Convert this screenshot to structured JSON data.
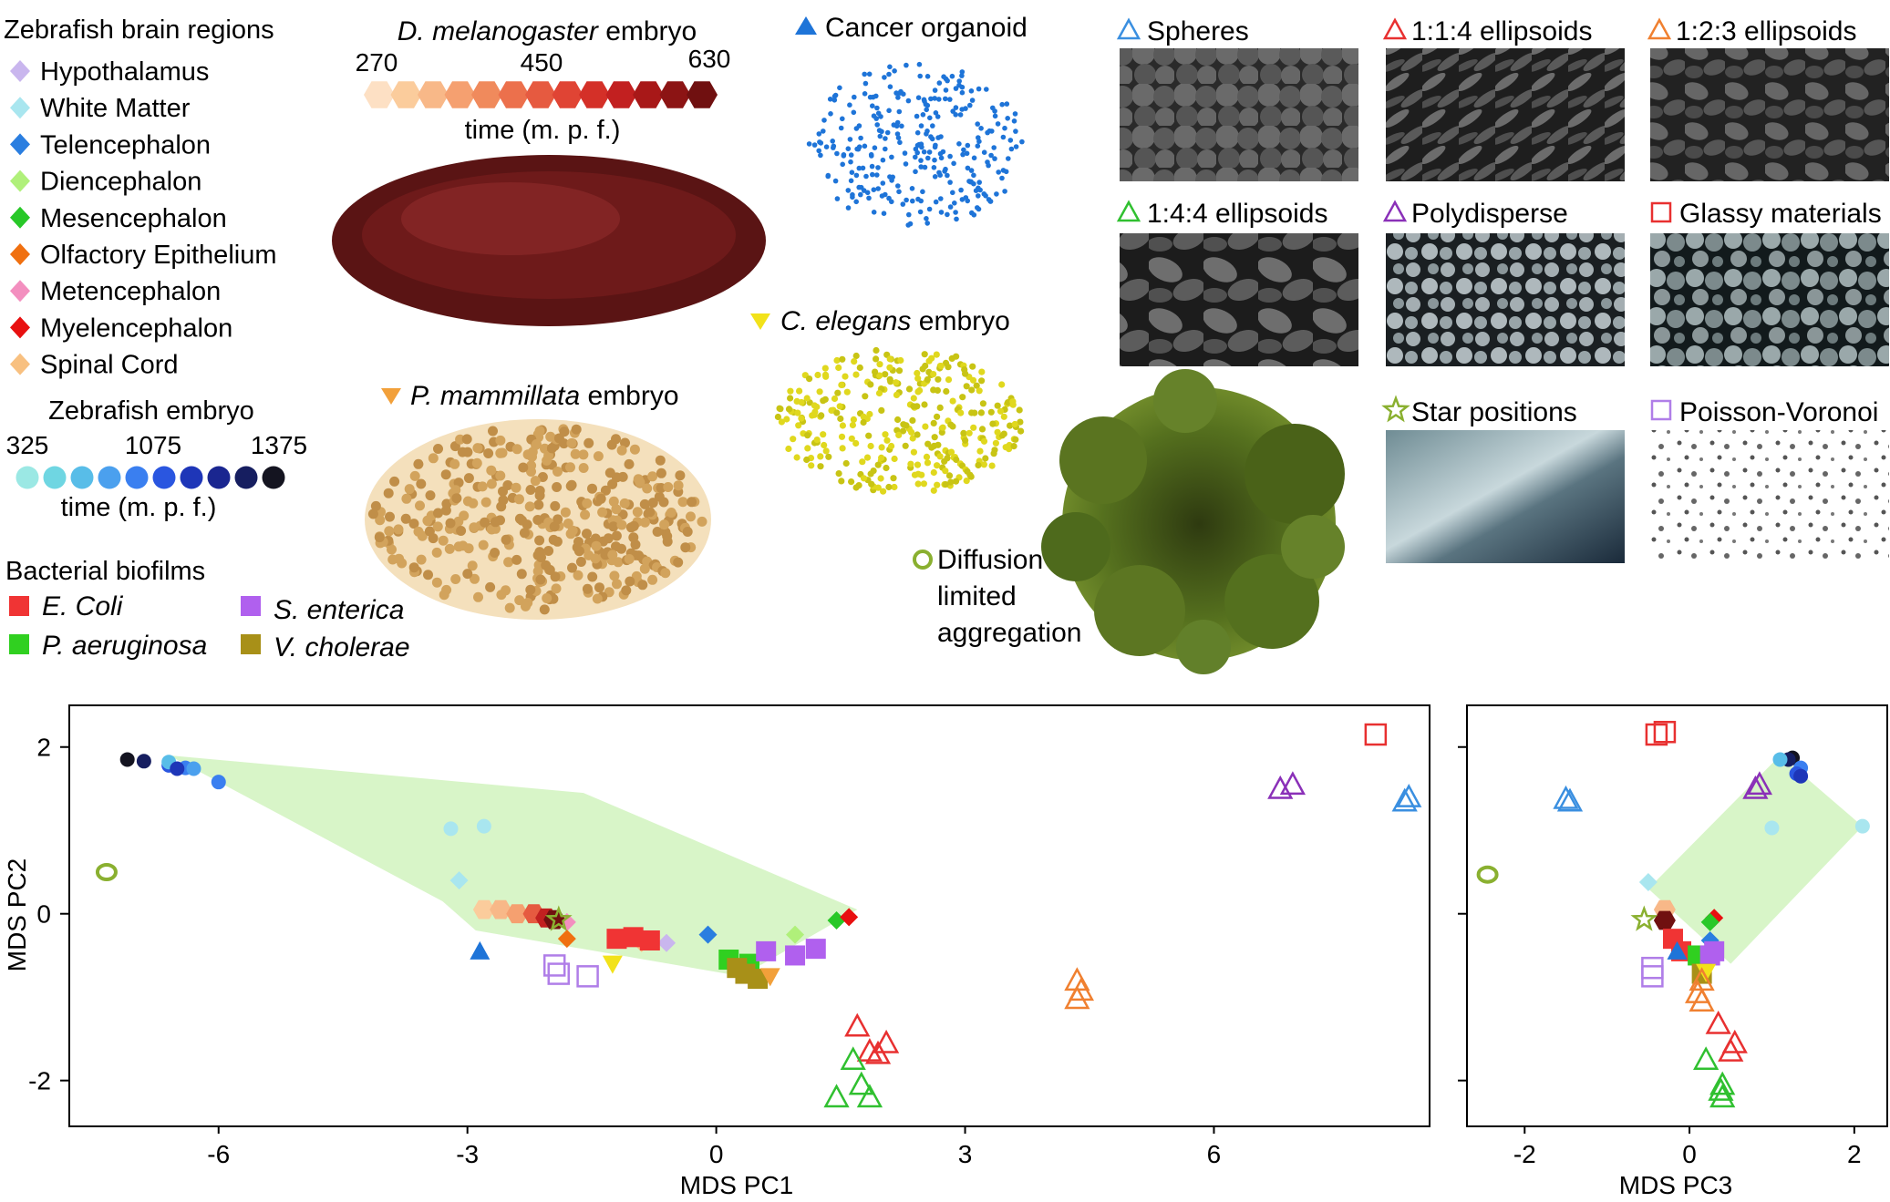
{
  "legend": {
    "zebrafish_regions_title": "Zebrafish brain regions",
    "regions": [
      {
        "label": "Hypothalamus",
        "color": "#c9b6ee"
      },
      {
        "label": "White Matter",
        "color": "#a9e6ef"
      },
      {
        "label": "Telencephalon",
        "color": "#2a7ee0"
      },
      {
        "label": "Diencephalon",
        "color": "#b0f07a"
      },
      {
        "label": "Mesencephalon",
        "color": "#28c828"
      },
      {
        "label": "Olfactory Epithelium",
        "color": "#f07010"
      },
      {
        "label": "Metencephalon",
        "color": "#f38fbf"
      },
      {
        "label": "Myelencephalon",
        "color": "#e81010"
      },
      {
        "label": "Spinal Cord",
        "color": "#f8c080"
      }
    ],
    "zebrafish_embryo": {
      "title": "Zebrafish embryo",
      "ticks": [
        "325",
        "1075",
        "1375"
      ],
      "axis_label": "time (m. p. f.)",
      "colors": [
        "#9be8e4",
        "#6fd6e2",
        "#58bde8",
        "#4ba0ee",
        "#3a7ff0",
        "#2a56e0",
        "#1e36b8",
        "#1a2690",
        "#161e60",
        "#141420"
      ]
    },
    "biofilms": {
      "title": "Bacterial biofilms",
      "items": [
        {
          "label": "E. Coli",
          "color": "#f03434"
        },
        {
          "label": "S. enterica",
          "color": "#b060ee"
        },
        {
          "label": "P. aeruginosa",
          "color": "#30d020"
        },
        {
          "label": "V. cholerae",
          "color": "#a89018"
        }
      ]
    },
    "drosophila": {
      "title_italic": "D. melanogaster",
      "title_rest": " embryo",
      "ticks": [
        "270",
        "450",
        "630"
      ],
      "axis_label": "time (m. p. f.)",
      "colors": [
        "#fde0c4",
        "#fbcc9c",
        "#f8b888",
        "#f5a070",
        "#f08a5c",
        "#ec704c",
        "#e65a40",
        "#e04434",
        "#d43028",
        "#c22020",
        "#a81818",
        "#8c1414",
        "#701010"
      ]
    },
    "pmammillata": {
      "title_italic": "P. mammillata",
      "title_rest": " embryo",
      "color": "#f2a03a"
    },
    "cancer_organoid": {
      "label": "Cancer organoid",
      "color": "#1e74d8"
    },
    "celegans": {
      "title_italic": "C. elegans",
      "title_rest": " embryo",
      "color": "#f2e21a"
    },
    "dla": {
      "lines": [
        "Diffusion",
        "limited",
        "aggregation"
      ],
      "color": "#8ab030"
    },
    "panels": [
      {
        "label": "Spheres",
        "marker": "triangle",
        "color": "#3a8fe0"
      },
      {
        "label": "1:1:4 ellipsoids",
        "marker": "triangle",
        "color": "#e83030"
      },
      {
        "label": "1:2:3 ellipsoids",
        "marker": "triangle",
        "color": "#f08030"
      },
      {
        "label": "1:4:4 ellipsoids",
        "marker": "triangle",
        "color": "#30c030"
      },
      {
        "label": "Polydisperse",
        "marker": "triangle",
        "color": "#8a30b8"
      },
      {
        "label": "Glassy materials",
        "marker": "square",
        "color": "#e83030"
      },
      {
        "label": "Star positions",
        "marker": "star",
        "color": "#8ab030"
      },
      {
        "label": "Poisson-Voronoi",
        "marker": "square",
        "color": "#b07ee8"
      }
    ]
  },
  "chart_data": [
    {
      "type": "scatter",
      "xlabel": "MDS PC1",
      "ylabel": "MDS PC2",
      "xlim": [
        -7.8,
        8.6
      ],
      "ylim": [
        -2.55,
        2.5
      ],
      "xticks": [
        "-6",
        "-3",
        "0",
        "3",
        "6"
      ],
      "xtick_values": [
        -6,
        -3,
        0,
        3,
        6
      ],
      "yticks": [
        "2",
        "0",
        "-2"
      ],
      "ytick_values": [
        2,
        0,
        -2
      ],
      "hull": [
        [
          -6.6,
          1.9
        ],
        [
          -1.6,
          1.45
        ],
        [
          1.7,
          0.05
        ],
        [
          0.3,
          -0.75
        ],
        [
          -2.9,
          -0.2
        ],
        [
          -3.3,
          0.15
        ]
      ],
      "hull_color": "#d8f5c8",
      "series": [
        {
          "name": "Zebrafish embryo",
          "marker": "circle",
          "points": [
            [
              -7.1,
              1.85,
              "#141420"
            ],
            [
              -6.9,
              1.83,
              "#161e60"
            ],
            [
              -6.6,
              1.78,
              "#2a56e0"
            ],
            [
              -6.4,
              1.75,
              "#3a7ff0"
            ],
            [
              -6.6,
              1.82,
              "#58bde8"
            ],
            [
              -6.0,
              1.58,
              "#3a7ff0"
            ],
            [
              -6.3,
              1.74,
              "#4ba0ee"
            ],
            [
              -6.5,
              1.74,
              "#1e36b8"
            ],
            [
              -3.2,
              1.02,
              "#a9e6ef"
            ],
            [
              -2.8,
              1.05,
              "#a9e6ef"
            ]
          ]
        },
        {
          "name": "Zebrafish brain regions",
          "marker": "diamond",
          "points": [
            [
              -3.1,
              0.4,
              "#a9e6ef"
            ],
            [
              -2.1,
              -0.05,
              "#c9b6ee"
            ],
            [
              -1.8,
              -0.1,
              "#f38fbf"
            ],
            [
              -0.6,
              -0.35,
              "#c9b6ee"
            ],
            [
              -0.1,
              -0.25,
              "#2a7ee0"
            ],
            [
              0.95,
              -0.25,
              "#b0f07a"
            ],
            [
              1.45,
              -0.08,
              "#28c828"
            ],
            [
              1.6,
              -0.04,
              "#e81010"
            ],
            [
              -1.8,
              -0.3,
              "#f07010"
            ],
            [
              -0.9,
              -0.35,
              "#f8c080"
            ]
          ]
        },
        {
          "name": "D. melanogaster",
          "marker": "hexagon",
          "points": [
            [
              -2.8,
              0.05,
              "#fbcc9c"
            ],
            [
              -2.6,
              0.05,
              "#f8b888"
            ],
            [
              -2.4,
              0.0,
              "#f5a070"
            ],
            [
              -2.2,
              0.0,
              "#e65a40"
            ],
            [
              -2.05,
              -0.05,
              "#c22020"
            ],
            [
              -1.95,
              -0.07,
              "#701010"
            ]
          ]
        },
        {
          "name": "Bacterial biofilms",
          "marker": "square",
          "points": [
            [
              -1.2,
              -0.3,
              "#f03434"
            ],
            [
              -1.0,
              -0.28,
              "#f03434"
            ],
            [
              -0.8,
              -0.32,
              "#f03434"
            ],
            [
              0.15,
              -0.55,
              "#30d020"
            ],
            [
              0.4,
              -0.6,
              "#30d020"
            ],
            [
              0.6,
              -0.45,
              "#b060ee"
            ],
            [
              0.95,
              -0.5,
              "#b060ee"
            ],
            [
              1.2,
              -0.42,
              "#b060ee"
            ],
            [
              0.35,
              -0.72,
              "#a89018"
            ],
            [
              0.5,
              -0.78,
              "#a89018"
            ],
            [
              0.25,
              -0.65,
              "#a89018"
            ]
          ]
        },
        {
          "name": "Cancer organoid",
          "marker": "triangle",
          "points": [
            [
              -2.85,
              -0.45,
              "#1e74d8"
            ]
          ]
        },
        {
          "name": "C. elegans",
          "marker": "triangle-down",
          "points": [
            [
              -1.25,
              -0.6,
              "#f2e21a"
            ]
          ]
        },
        {
          "name": "P. mammillata",
          "marker": "triangle-down",
          "points": [
            [
              0.65,
              -0.75,
              "#f2a03a"
            ]
          ]
        },
        {
          "name": "Star positions",
          "marker": "star",
          "points": [
            [
              -1.9,
              -0.07,
              "#8ab030"
            ]
          ]
        },
        {
          "name": "Diffusion limited aggregation",
          "marker": "ring",
          "points": [
            [
              -7.35,
              0.5,
              "#8ab030"
            ]
          ]
        },
        {
          "name": "Poisson-Voronoi",
          "marker": "square-open",
          "points": [
            [
              -1.95,
              -0.62,
              "#b07ee8"
            ],
            [
              -1.9,
              -0.72,
              "#b07ee8"
            ],
            [
              -1.55,
              -0.75,
              "#b07ee8"
            ]
          ]
        },
        {
          "name": "Glassy materials",
          "marker": "square-open",
          "points": [
            [
              7.95,
              2.15,
              "#e83030"
            ]
          ]
        },
        {
          "name": "Spheres",
          "marker": "triangle-open",
          "points": [
            [
              8.3,
              1.35,
              "#3a8fe0"
            ],
            [
              8.35,
              1.4,
              "#3a8fe0"
            ]
          ]
        },
        {
          "name": "Polydisperse",
          "marker": "triangle-open",
          "points": [
            [
              6.8,
              1.5,
              "#8a30b8"
            ],
            [
              6.95,
              1.55,
              "#8a30b8"
            ]
          ]
        },
        {
          "name": "1:2:3 ellipsoids",
          "marker": "triangle-open",
          "points": [
            [
              4.35,
              -0.8,
              "#f08030"
            ],
            [
              4.4,
              -0.92,
              "#f08030"
            ],
            [
              4.35,
              -1.02,
              "#f08030"
            ]
          ]
        },
        {
          "name": "1:1:4 ellipsoids",
          "marker": "triangle-open",
          "points": [
            [
              1.7,
              -1.35,
              "#e83030"
            ],
            [
              1.85,
              -1.65,
              "#e83030"
            ],
            [
              2.05,
              -1.55,
              "#e83030"
            ],
            [
              1.95,
              -1.68,
              "#e83030"
            ]
          ]
        },
        {
          "name": "1:4:4 ellipsoids",
          "marker": "triangle-open",
          "points": [
            [
              1.65,
              -1.75,
              "#30c030"
            ],
            [
              1.75,
              -2.05,
              "#30c030"
            ],
            [
              1.45,
              -2.2,
              "#30c030"
            ],
            [
              1.85,
              -2.2,
              "#30c030"
            ]
          ]
        }
      ]
    },
    {
      "type": "scatter",
      "xlabel": "MDS PC3",
      "ylabel": "",
      "xlim": [
        -2.7,
        2.4
      ],
      "ylim": [
        -2.55,
        2.5
      ],
      "xticks": [
        "-2",
        "0",
        "2"
      ],
      "xtick_values": [
        -2,
        0,
        2
      ],
      "ytick_values": [
        2,
        0,
        -2
      ],
      "hull": [
        [
          1.1,
          1.9
        ],
        [
          2.1,
          1.05
        ],
        [
          0.5,
          -0.6
        ],
        [
          -0.5,
          0.3
        ]
      ],
      "hull_color": "#d8f5c8",
      "series": [
        {
          "name": "Zebrafish embryo",
          "marker": "circle",
          "points": [
            [
              1.25,
              1.87,
              "#141420"
            ],
            [
              1.2,
              1.85,
              "#161e60"
            ],
            [
              1.35,
              1.75,
              "#3a7ff0"
            ],
            [
              1.3,
              1.68,
              "#2a56e0"
            ],
            [
              1.1,
              1.85,
              "#58bde8"
            ],
            [
              1.35,
              1.65,
              "#1e36b8"
            ],
            [
              1.0,
              1.03,
              "#a9e6ef"
            ],
            [
              2.1,
              1.05,
              "#a9e6ef"
            ]
          ]
        },
        {
          "name": "Zebrafish brain regions",
          "marker": "diamond",
          "points": [
            [
              -0.5,
              0.38,
              "#a9e6ef"
            ],
            [
              0.25,
              -0.32,
              "#2a7ee0"
            ],
            [
              0.3,
              -0.05,
              "#e81010"
            ],
            [
              0.25,
              -0.1,
              "#28c828"
            ],
            [
              -0.2,
              -0.3,
              "#f07010"
            ]
          ]
        },
        {
          "name": "D. melanogaster",
          "marker": "hexagon",
          "points": [
            [
              -0.3,
              0.05,
              "#f8b888"
            ],
            [
              -0.3,
              -0.08,
              "#701010"
            ]
          ]
        },
        {
          "name": "Bacterial biofilms",
          "marker": "square",
          "points": [
            [
              -0.2,
              -0.3,
              "#f03434"
            ],
            [
              -0.1,
              -0.45,
              "#f03434"
            ],
            [
              0.1,
              -0.5,
              "#30d020"
            ],
            [
              0.25,
              -0.5,
              "#b060ee"
            ],
            [
              0.3,
              -0.45,
              "#b060ee"
            ],
            [
              0.15,
              -0.72,
              "#a89018"
            ]
          ]
        },
        {
          "name": "Cancer organoid",
          "marker": "triangle",
          "points": [
            [
              -0.15,
              -0.45,
              "#1e74d8"
            ]
          ]
        },
        {
          "name": "C. elegans",
          "marker": "triangle-down",
          "points": [
            [
              0.2,
              -0.7,
              "#f2e21a"
            ]
          ]
        },
        {
          "name": "Star positions",
          "marker": "star",
          "points": [
            [
              -0.55,
              -0.07,
              "#8ab030"
            ]
          ]
        },
        {
          "name": "Diffusion limited aggregation",
          "marker": "ring",
          "points": [
            [
              -2.45,
              0.47,
              "#8ab030"
            ]
          ]
        },
        {
          "name": "Poisson-Voronoi",
          "marker": "square-open",
          "points": [
            [
              -0.45,
              -0.65,
              "#b07ee8"
            ],
            [
              -0.45,
              -0.75,
              "#b07ee8"
            ]
          ]
        },
        {
          "name": "Glassy materials",
          "marker": "square-open",
          "points": [
            [
              -0.4,
              2.15,
              "#e83030"
            ],
            [
              -0.3,
              2.18,
              "#e83030"
            ]
          ]
        },
        {
          "name": "Spheres",
          "marker": "triangle-open",
          "points": [
            [
              -1.5,
              1.38,
              "#3a8fe0"
            ],
            [
              -1.45,
              1.35,
              "#3a8fe0"
            ]
          ]
        },
        {
          "name": "Polydisperse",
          "marker": "triangle-open",
          "points": [
            [
              0.85,
              1.55,
              "#8a30b8"
            ],
            [
              0.8,
              1.5,
              "#8a30b8"
            ]
          ]
        },
        {
          "name": "1:2:3 ellipsoids",
          "marker": "triangle-open",
          "points": [
            [
              0.15,
              -0.8,
              "#f08030"
            ],
            [
              0.1,
              -0.95,
              "#f08030"
            ],
            [
              0.15,
              -1.05,
              "#f08030"
            ]
          ]
        },
        {
          "name": "1:1:4 ellipsoids",
          "marker": "triangle-open",
          "points": [
            [
              0.35,
              -1.32,
              "#e83030"
            ],
            [
              0.55,
              -1.55,
              "#e83030"
            ],
            [
              0.5,
              -1.65,
              "#e83030"
            ]
          ]
        },
        {
          "name": "1:4:4 ellipsoids",
          "marker": "triangle-open",
          "points": [
            [
              0.2,
              -1.75,
              "#30c030"
            ],
            [
              0.4,
              -2.05,
              "#30c030"
            ],
            [
              0.4,
              -2.2,
              "#30c030"
            ],
            [
              0.38,
              -2.12,
              "#30c030"
            ]
          ]
        }
      ]
    }
  ]
}
